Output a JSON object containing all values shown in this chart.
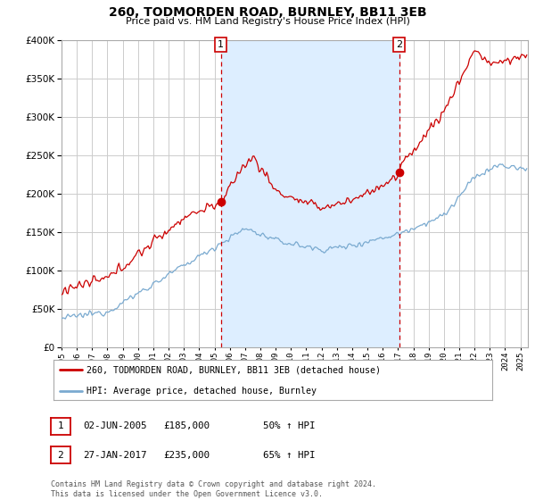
{
  "title": "260, TODMORDEN ROAD, BURNLEY, BB11 3EB",
  "subtitle": "Price paid vs. HM Land Registry's House Price Index (HPI)",
  "red_label": "260, TODMORDEN ROAD, BURNLEY, BB11 3EB (detached house)",
  "blue_label": "HPI: Average price, detached house, Burnley",
  "annotation1_date": "02-JUN-2005",
  "annotation1_price": "£185,000",
  "annotation1_hpi": "50% ↑ HPI",
  "annotation1_year": 2005.42,
  "annotation1_value": 185000,
  "annotation2_date": "27-JAN-2017",
  "annotation2_price": "£235,000",
  "annotation2_hpi": "65% ↑ HPI",
  "annotation2_year": 2017.08,
  "annotation2_value": 235000,
  "footer": "Contains HM Land Registry data © Crown copyright and database right 2024.\nThis data is licensed under the Open Government Licence v3.0.",
  "ylim": [
    0,
    400000
  ],
  "xlim_start": 1995.0,
  "xlim_end": 2025.5,
  "red_color": "#cc0000",
  "blue_color": "#7aaad0",
  "blue_fill_color": "#ddeeff",
  "grid_color": "#cccccc",
  "bg_color": "#ffffff",
  "title_fontsize": 10,
  "subtitle_fontsize": 8
}
